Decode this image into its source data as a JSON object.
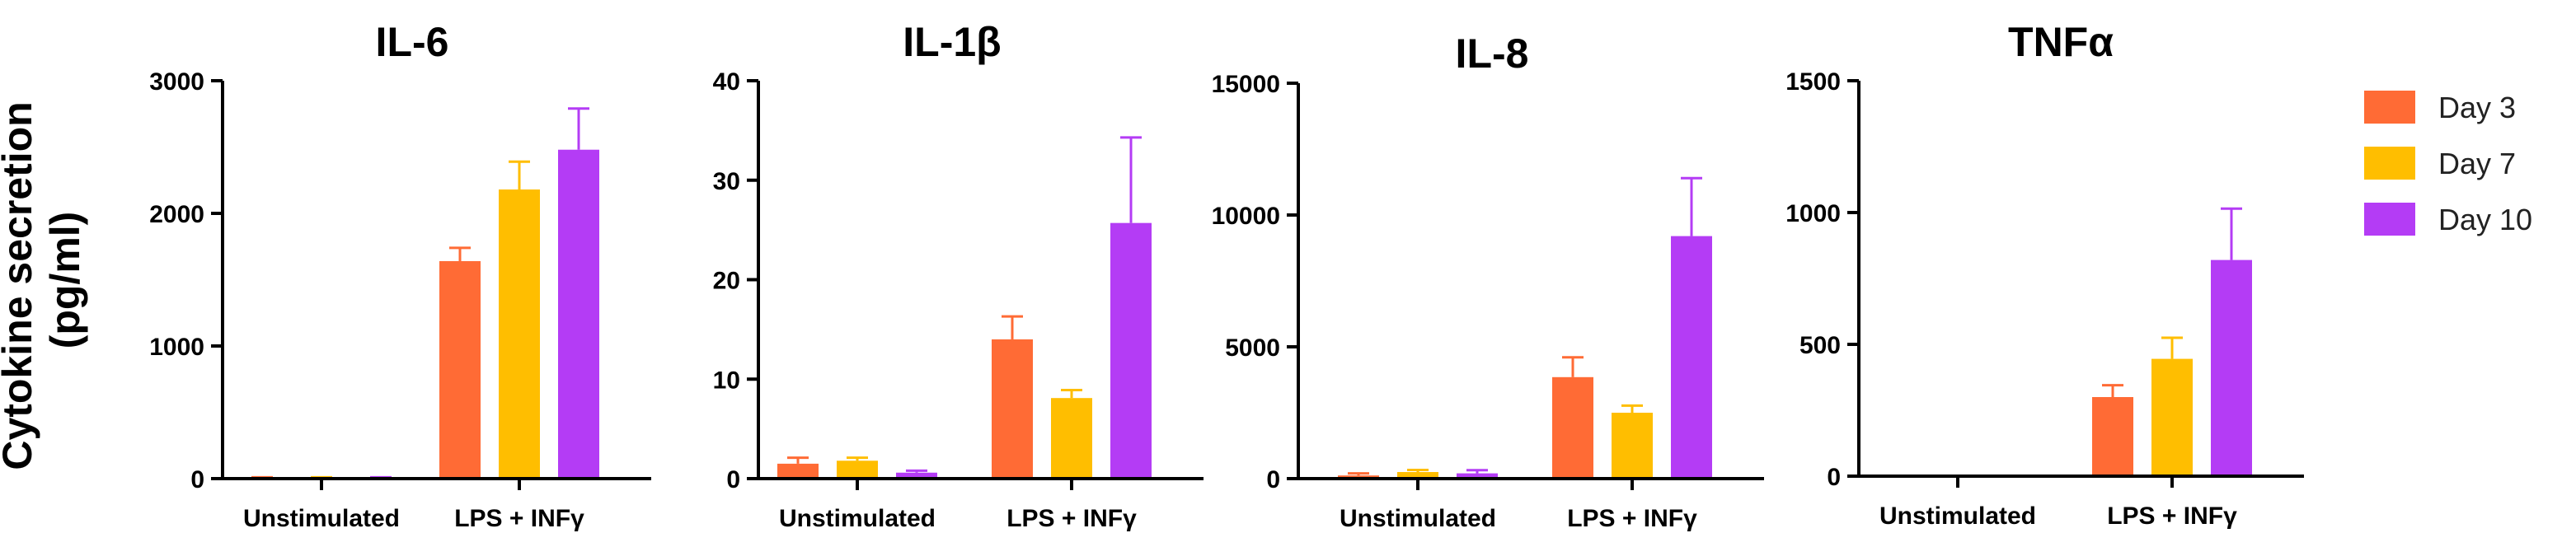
{
  "y_axis_label_line1": "Cytokine secretion",
  "y_axis_label_line2": "(pg/ml)",
  "legend": [
    {
      "label": "Day 3",
      "color": "#FF6B35"
    },
    {
      "label": "Day 7",
      "color": "#FFBE00"
    },
    {
      "label": "Day 10",
      "color": "#B43CF5"
    }
  ],
  "chart_data": [
    {
      "type": "bar",
      "title": "IL-6",
      "categories": [
        "Unstimulated",
        "LPS + INFγ"
      ],
      "ylim": [
        0,
        3000
      ],
      "yticks": [
        0,
        1000,
        2000,
        3000
      ],
      "series": [
        {
          "name": "Day 3",
          "values": [
            5,
            1640
          ],
          "errors": [
            5,
            100
          ]
        },
        {
          "name": "Day 7",
          "values": [
            5,
            2180
          ],
          "errors": [
            5,
            210
          ]
        },
        {
          "name": "Day 10",
          "values": [
            5,
            2480
          ],
          "errors": [
            5,
            310
          ]
        }
      ]
    },
    {
      "type": "bar",
      "title": "IL-1β",
      "categories": [
        "Unstimulated",
        "LPS + INFγ"
      ],
      "ylim": [
        0,
        40
      ],
      "yticks": [
        0,
        10,
        20,
        30,
        40
      ],
      "series": [
        {
          "name": "Day 3",
          "values": [
            1.5,
            14.0
          ],
          "errors": [
            0.6,
            2.3
          ]
        },
        {
          "name": "Day 7",
          "values": [
            1.8,
            8.1
          ],
          "errors": [
            0.3,
            0.8
          ]
        },
        {
          "name": "Day 10",
          "values": [
            0.6,
            25.7
          ],
          "errors": [
            0.2,
            8.6
          ]
        }
      ]
    },
    {
      "type": "bar",
      "title": "IL-8",
      "categories": [
        "Unstimulated",
        "LPS + INFγ"
      ],
      "ylim": [
        0,
        15000
      ],
      "yticks": [
        0,
        5000,
        10000,
        15000
      ],
      "series": [
        {
          "name": "Day 3",
          "values": [
            120,
            3850
          ],
          "errors": [
            80,
            750
          ]
        },
        {
          "name": "Day 7",
          "values": [
            250,
            2500
          ],
          "errors": [
            80,
            270
          ]
        },
        {
          "name": "Day 10",
          "values": [
            200,
            9200
          ],
          "errors": [
            120,
            2200
          ]
        }
      ]
    },
    {
      "type": "bar",
      "title": "TNFα",
      "categories": [
        "Unstimulated",
        "LPS + INFγ"
      ],
      "ylim": [
        0,
        1500
      ],
      "yticks": [
        0,
        500,
        1000,
        1500
      ],
      "series": [
        {
          "name": "Day 3",
          "values": [
            0,
            300
          ],
          "errors": [
            0,
            45
          ]
        },
        {
          "name": "Day 7",
          "values": [
            0,
            445
          ],
          "errors": [
            0,
            80
          ]
        },
        {
          "name": "Day 10",
          "values": [
            0,
            820
          ],
          "errors": [
            0,
            195
          ]
        }
      ]
    }
  ]
}
